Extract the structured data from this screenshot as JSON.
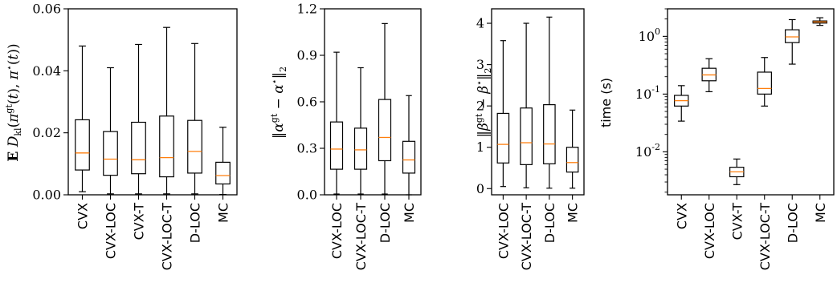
{
  "chart_data": [
    {
      "type": "box",
      "ylabel": "E D_kl(π^gt(t), π*(t))",
      "ylim": [
        0,
        0.06
      ],
      "yscale": "linear",
      "yticks": [
        "0.00",
        "0.02",
        "0.04",
        "0.06"
      ],
      "ytick_values": [
        0,
        0.02,
        0.04,
        0.06
      ],
      "categories": [
        "CVX",
        "CVX-LOC",
        "CVX-T",
        "CVX-LOC-T",
        "D-LOC",
        "MC"
      ],
      "boxes": [
        {
          "whisker_low": 0.001,
          "q1": 0.008,
          "median": 0.0135,
          "q3": 0.0242,
          "whisker_high": 0.048
        },
        {
          "whisker_low": 0.0003,
          "q1": 0.0063,
          "median": 0.0115,
          "q3": 0.0204,
          "whisker_high": 0.041
        },
        {
          "whisker_low": 0.0003,
          "q1": 0.0068,
          "median": 0.0113,
          "q3": 0.0234,
          "whisker_high": 0.0485
        },
        {
          "whisker_low": 0.0003,
          "q1": 0.0058,
          "median": 0.012,
          "q3": 0.0254,
          "whisker_high": 0.054
        },
        {
          "whisker_low": 0.0003,
          "q1": 0.007,
          "median": 0.014,
          "q3": 0.024,
          "whisker_high": 0.0488
        },
        {
          "whisker_low": 0.0001,
          "q1": 0.0035,
          "median": 0.0062,
          "q3": 0.0105,
          "whisker_high": 0.0218
        }
      ]
    },
    {
      "type": "box",
      "ylabel": "‖α^gt − α*‖₂",
      "ylim": [
        0,
        1.2
      ],
      "yscale": "linear",
      "yticks": [
        "0.0",
        "0.3",
        "0.6",
        "0.9",
        "1.2"
      ],
      "ytick_values": [
        0,
        0.3,
        0.6,
        0.9,
        1.2
      ],
      "categories": [
        "CVX-LOC",
        "CVX-LOC-T",
        "D-LOC",
        "MC"
      ],
      "boxes": [
        {
          "whisker_low": 0.005,
          "q1": 0.165,
          "median": 0.295,
          "q3": 0.47,
          "whisker_high": 0.92
        },
        {
          "whisker_low": 0.005,
          "q1": 0.165,
          "median": 0.29,
          "q3": 0.43,
          "whisker_high": 0.82
        },
        {
          "whisker_low": 0.005,
          "q1": 0.22,
          "median": 0.37,
          "q3": 0.615,
          "whisker_high": 1.105
        },
        {
          "whisker_low": 0.0,
          "q1": 0.14,
          "median": 0.225,
          "q3": 0.345,
          "whisker_high": 0.64
        }
      ]
    },
    {
      "type": "box",
      "ylabel": "‖β^gt − β*‖₂",
      "ylim": [
        -0.15,
        4.35
      ],
      "yscale": "linear",
      "yticks": [
        "0",
        "1",
        "2",
        "3",
        "4"
      ],
      "ytick_values": [
        0,
        1,
        2,
        3,
        4
      ],
      "categories": [
        "CVX-LOC",
        "CVX-LOC-T",
        "D-LOC",
        "MC"
      ],
      "boxes": [
        {
          "whisker_low": 0.05,
          "q1": 0.62,
          "median": 1.07,
          "q3": 1.82,
          "whisker_high": 3.58
        },
        {
          "whisker_low": 0.02,
          "q1": 0.58,
          "median": 1.11,
          "q3": 1.95,
          "whisker_high": 4.0
        },
        {
          "whisker_low": 0.01,
          "q1": 0.6,
          "median": 1.08,
          "q3": 2.03,
          "whisker_high": 4.15
        },
        {
          "whisker_low": 0.01,
          "q1": 0.4,
          "median": 0.63,
          "q3": 1.0,
          "whisker_high": 1.9
        }
      ]
    },
    {
      "type": "box",
      "ylabel": "time (s)",
      "ylim": [
        0.0018,
        3.0
      ],
      "yscale": "log",
      "yticks": [
        "10",
        "10",
        "10"
      ],
      "ytick_exponents": [
        "-2",
        "-1",
        "0"
      ],
      "ytick_values": [
        0.01,
        0.1,
        1
      ],
      "categories": [
        "CVX",
        "CVX-LOC",
        "CVX-T",
        "CVX-LOC-T",
        "D-LOC",
        "MC"
      ],
      "boxes": [
        {
          "whisker_low": 0.034,
          "q1": 0.062,
          "median": 0.077,
          "q3": 0.095,
          "whisker_high": 0.14
        },
        {
          "whisker_low": 0.11,
          "q1": 0.17,
          "median": 0.215,
          "q3": 0.28,
          "whisker_high": 0.41
        },
        {
          "whisker_low": 0.0027,
          "q1": 0.0037,
          "median": 0.0045,
          "q3": 0.0054,
          "whisker_high": 0.0075
        },
        {
          "whisker_low": 0.062,
          "q1": 0.1,
          "median": 0.125,
          "q3": 0.24,
          "whisker_high": 0.43
        },
        {
          "whisker_low": 0.33,
          "q1": 0.78,
          "median": 0.98,
          "q3": 1.3,
          "whisker_high": 1.95
        },
        {
          "whisker_low": 1.55,
          "q1": 1.7,
          "median": 1.78,
          "q3": 1.85,
          "whisker_high": 2.1
        }
      ]
    }
  ],
  "colors": {
    "box": "#000000",
    "median": "#ff7f0e",
    "background": "#ffffff"
  }
}
